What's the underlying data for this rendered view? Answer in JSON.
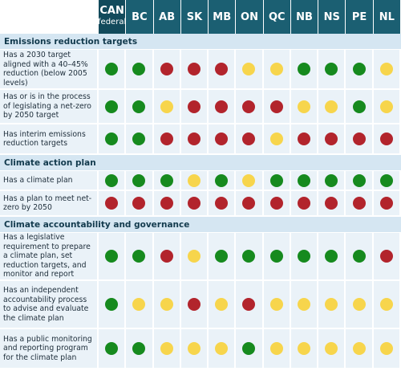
{
  "header": {
    "columns": [
      {
        "name": "CAN",
        "note": "federal"
      },
      {
        "name": "BC"
      },
      {
        "name": "AB"
      },
      {
        "name": "SK"
      },
      {
        "name": "MB"
      },
      {
        "name": "ON"
      },
      {
        "name": "QC"
      },
      {
        "name": "NB"
      },
      {
        "name": "NS"
      },
      {
        "name": "PE"
      },
      {
        "name": "NL"
      }
    ]
  },
  "status_colors": {
    "green": "#168a1e",
    "yellow": "#f7d54c",
    "red": "#b2242c"
  },
  "sections": [
    {
      "title": "Emissions reduction targets",
      "rows": [
        {
          "label": "Has a 2030 target aligned with a 40–45% reduction (below 2005 levels)",
          "status": [
            "green",
            "green",
            "red",
            "red",
            "red",
            "yellow",
            "yellow",
            "green",
            "green",
            "green",
            "yellow"
          ]
        },
        {
          "label": "Has or is in the process of legislating a net-zero by 2050 target",
          "status": [
            "green",
            "green",
            "yellow",
            "red",
            "red",
            "red",
            "red",
            "yellow",
            "yellow",
            "green",
            "yellow"
          ]
        },
        {
          "label": "Has interim emissions reduction targets",
          "status": [
            "green",
            "green",
            "red",
            "red",
            "red",
            "red",
            "yellow",
            "red",
            "red",
            "red",
            "red"
          ]
        }
      ]
    },
    {
      "title": "Climate action plan",
      "rows": [
        {
          "label": "Has a climate plan",
          "status": [
            "green",
            "green",
            "green",
            "yellow",
            "green",
            "yellow",
            "green",
            "green",
            "green",
            "green",
            "green"
          ]
        },
        {
          "label": "Has a plan to meet net-zero by 2050",
          "status": [
            "red",
            "red",
            "red",
            "red",
            "red",
            "red",
            "red",
            "red",
            "red",
            "red",
            "red"
          ]
        }
      ]
    },
    {
      "title": "Climate accountability and governance",
      "rows": [
        {
          "label": "Has a legislative requirement to prepare a climate plan, set reduction targets, and monitor and report",
          "status": [
            "green",
            "green",
            "red",
            "yellow",
            "green",
            "green",
            "green",
            "green",
            "green",
            "green",
            "red"
          ]
        },
        {
          "label": "Has an independent accountability process to advise and evaluate the climate plan",
          "status": [
            "green",
            "yellow",
            "yellow",
            "red",
            "yellow",
            "red",
            "yellow",
            "yellow",
            "yellow",
            "yellow",
            "yellow"
          ]
        },
        {
          "label": "Has a public monitoring and reporting program for the climate plan",
          "status": [
            "green",
            "green",
            "yellow",
            "yellow",
            "yellow",
            "green",
            "yellow",
            "yellow",
            "yellow",
            "yellow",
            "yellow"
          ]
        }
      ]
    }
  ]
}
